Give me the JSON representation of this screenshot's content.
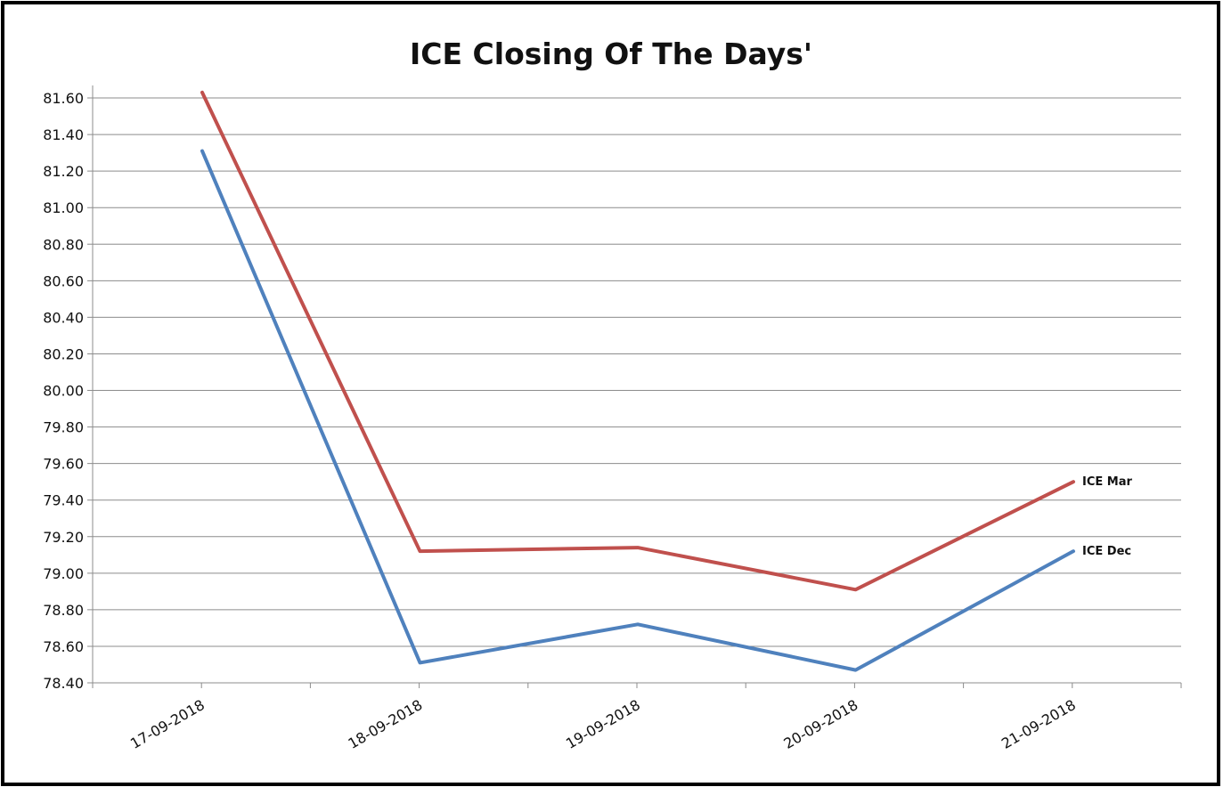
{
  "chart_data": {
    "type": "line",
    "title": "ICE Closing Of The Days'",
    "xlabel": "",
    "ylabel": "",
    "categories": [
      "17-09-2018",
      "18-09-2018",
      "19-09-2018",
      "20-09-2018",
      "21-09-2018"
    ],
    "ylim": [
      78.4,
      81.6
    ],
    "yticks": [
      "81.60",
      "81.40",
      "81.20",
      "81.00",
      "80.80",
      "80.60",
      "80.40",
      "80.20",
      "80.00",
      "79.80",
      "79.60",
      "79.40",
      "79.20",
      "79.00",
      "78.80",
      "78.60",
      "78.40"
    ],
    "grid": true,
    "legend": "inline labels at line ends",
    "series": [
      {
        "name": "ICE Mar",
        "color": "#c0504d",
        "values": [
          81.63,
          79.12,
          79.14,
          78.91,
          79.5
        ]
      },
      {
        "name": "ICE Dec",
        "color": "#4f81bd",
        "values": [
          81.31,
          78.51,
          78.72,
          78.47,
          79.12
        ]
      }
    ]
  }
}
